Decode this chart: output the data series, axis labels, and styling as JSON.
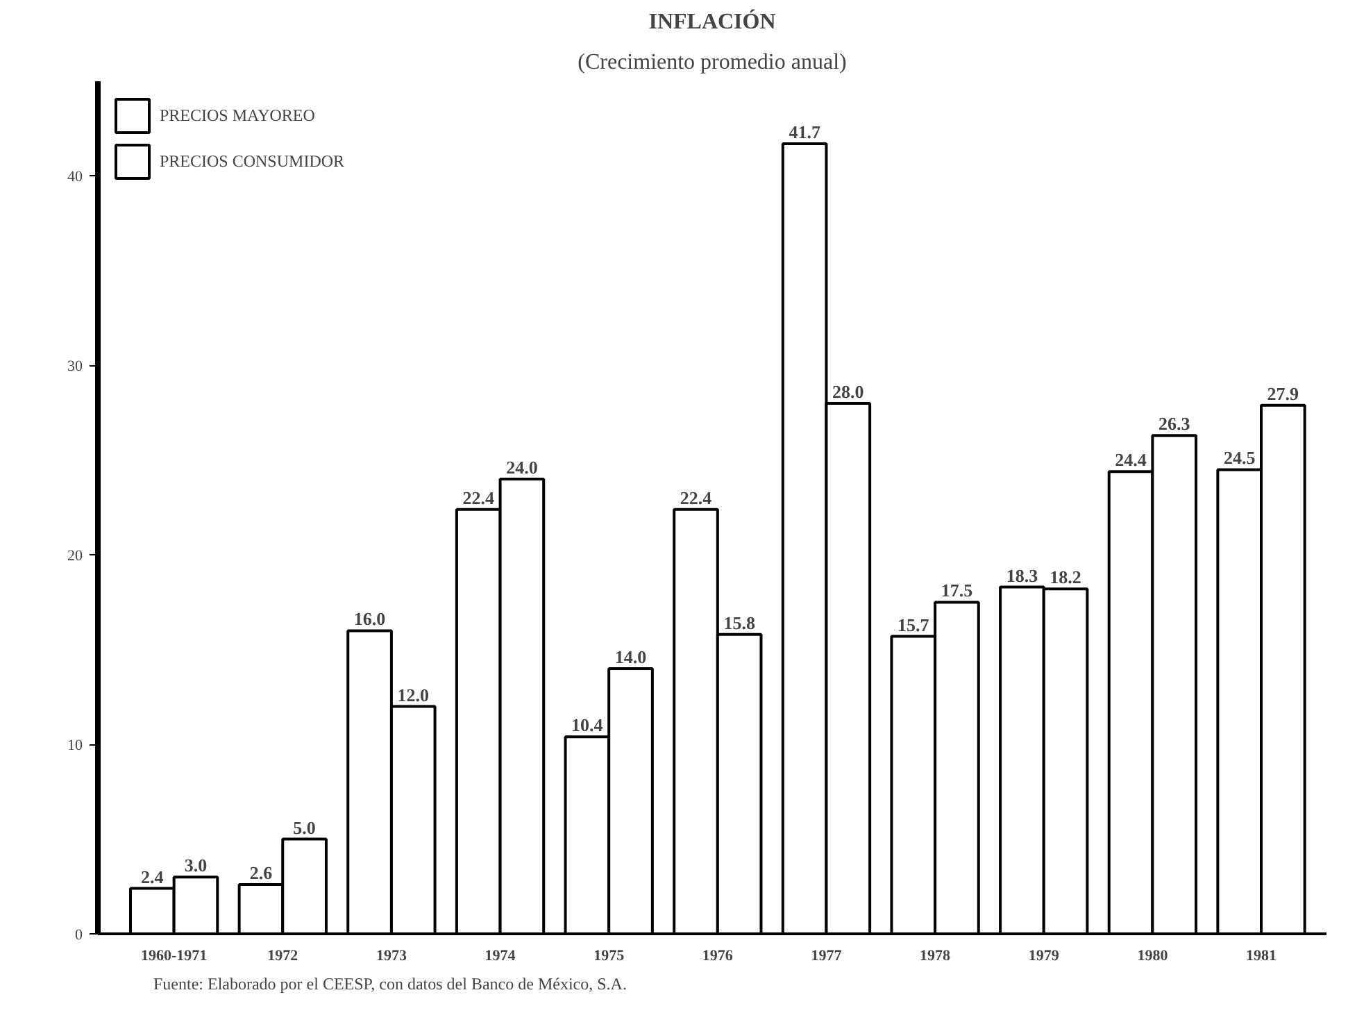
{
  "chart_data": {
    "type": "bar",
    "title": "INFLACIÓN",
    "subtitle": "(Crecimiento promedio anual)",
    "categories": [
      "1960-1971",
      "1972",
      "1973",
      "1974",
      "1975",
      "1976",
      "1977",
      "1978",
      "1979",
      "1980",
      "1981"
    ],
    "series": [
      {
        "name": "PRECIOS MAYOREO",
        "color": "#ffffff",
        "values": [
          2.4,
          2.6,
          16.0,
          22.4,
          10.4,
          22.4,
          41.7,
          15.7,
          18.3,
          24.4,
          24.5
        ],
        "value_labels": [
          "2.4",
          "2.6",
          "16.0",
          "22.4",
          "10.4",
          "22.4",
          "41.7",
          "15.7",
          "18.3",
          "24.4",
          "24.5"
        ]
      },
      {
        "name": "PRECIOS CONSUMIDOR",
        "color": "#ffffff",
        "values": [
          3.0,
          5.0,
          12.0,
          24.0,
          14.0,
          15.8,
          28.0,
          17.5,
          18.2,
          26.3,
          27.9
        ],
        "value_labels": [
          "3.0",
          "5.0",
          "12.0",
          "24.0",
          "14.0",
          "15.8",
          "28.0",
          "17.5",
          "18.2",
          "26.3",
          "27.9"
        ]
      }
    ],
    "ylim": [
      0,
      45
    ],
    "yticks": [
      0,
      10,
      20,
      30,
      40
    ],
    "grid": false,
    "legend": "top left",
    "annotations": [
      "Fuente: Elaborado por el CEESP, con datos del Banco de México, S.A."
    ]
  }
}
